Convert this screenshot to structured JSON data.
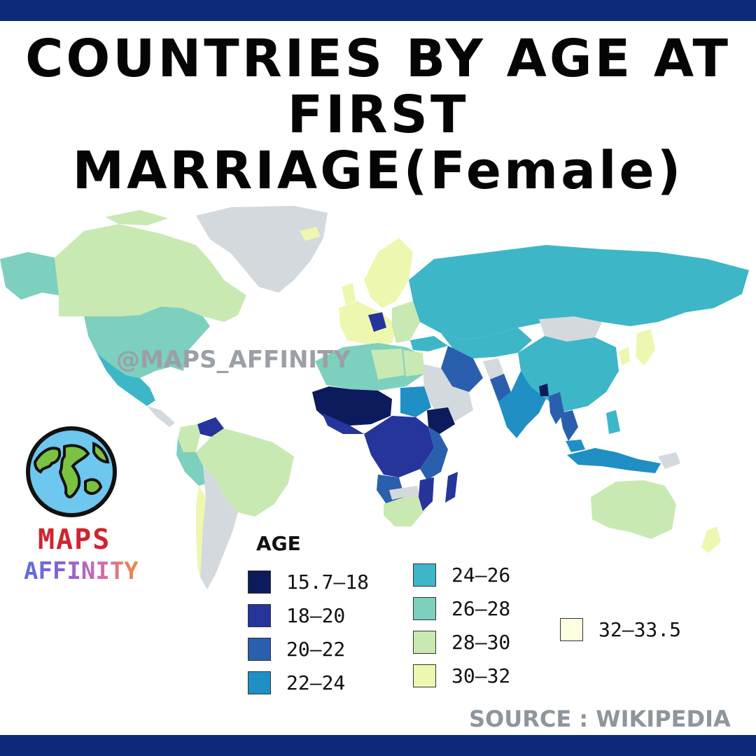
{
  "title": {
    "line1": "COUNTRIES BY AGE AT",
    "line2": "FIRST",
    "line3": "MARRIAGE(Female)"
  },
  "watermark": "@MAPS_AFFINITY",
  "brand": {
    "line1": "MAPS",
    "line2": "AFFINITY"
  },
  "legend": {
    "title": "AGE",
    "items": [
      {
        "label": "15.7–18",
        "color": "#0c1b5c"
      },
      {
        "label": "18–20",
        "color": "#25359b"
      },
      {
        "label": "20–22",
        "color": "#2a5fae"
      },
      {
        "label": "22–24",
        "color": "#1f8fc4"
      },
      {
        "label": "24–26",
        "color": "#3db6c8"
      },
      {
        "label": "26–28",
        "color": "#7dcfbe"
      },
      {
        "label": "28–30",
        "color": "#c9e9b2"
      },
      {
        "label": "30–32",
        "color": "#eef7b0"
      },
      {
        "label": "32–33.5",
        "color": "#fdfde0"
      }
    ]
  },
  "colors": {
    "no_data": "#d4d9dd",
    "banner": "#0d2a7a"
  },
  "source": "SOURCE : WIKIPEDIA"
}
